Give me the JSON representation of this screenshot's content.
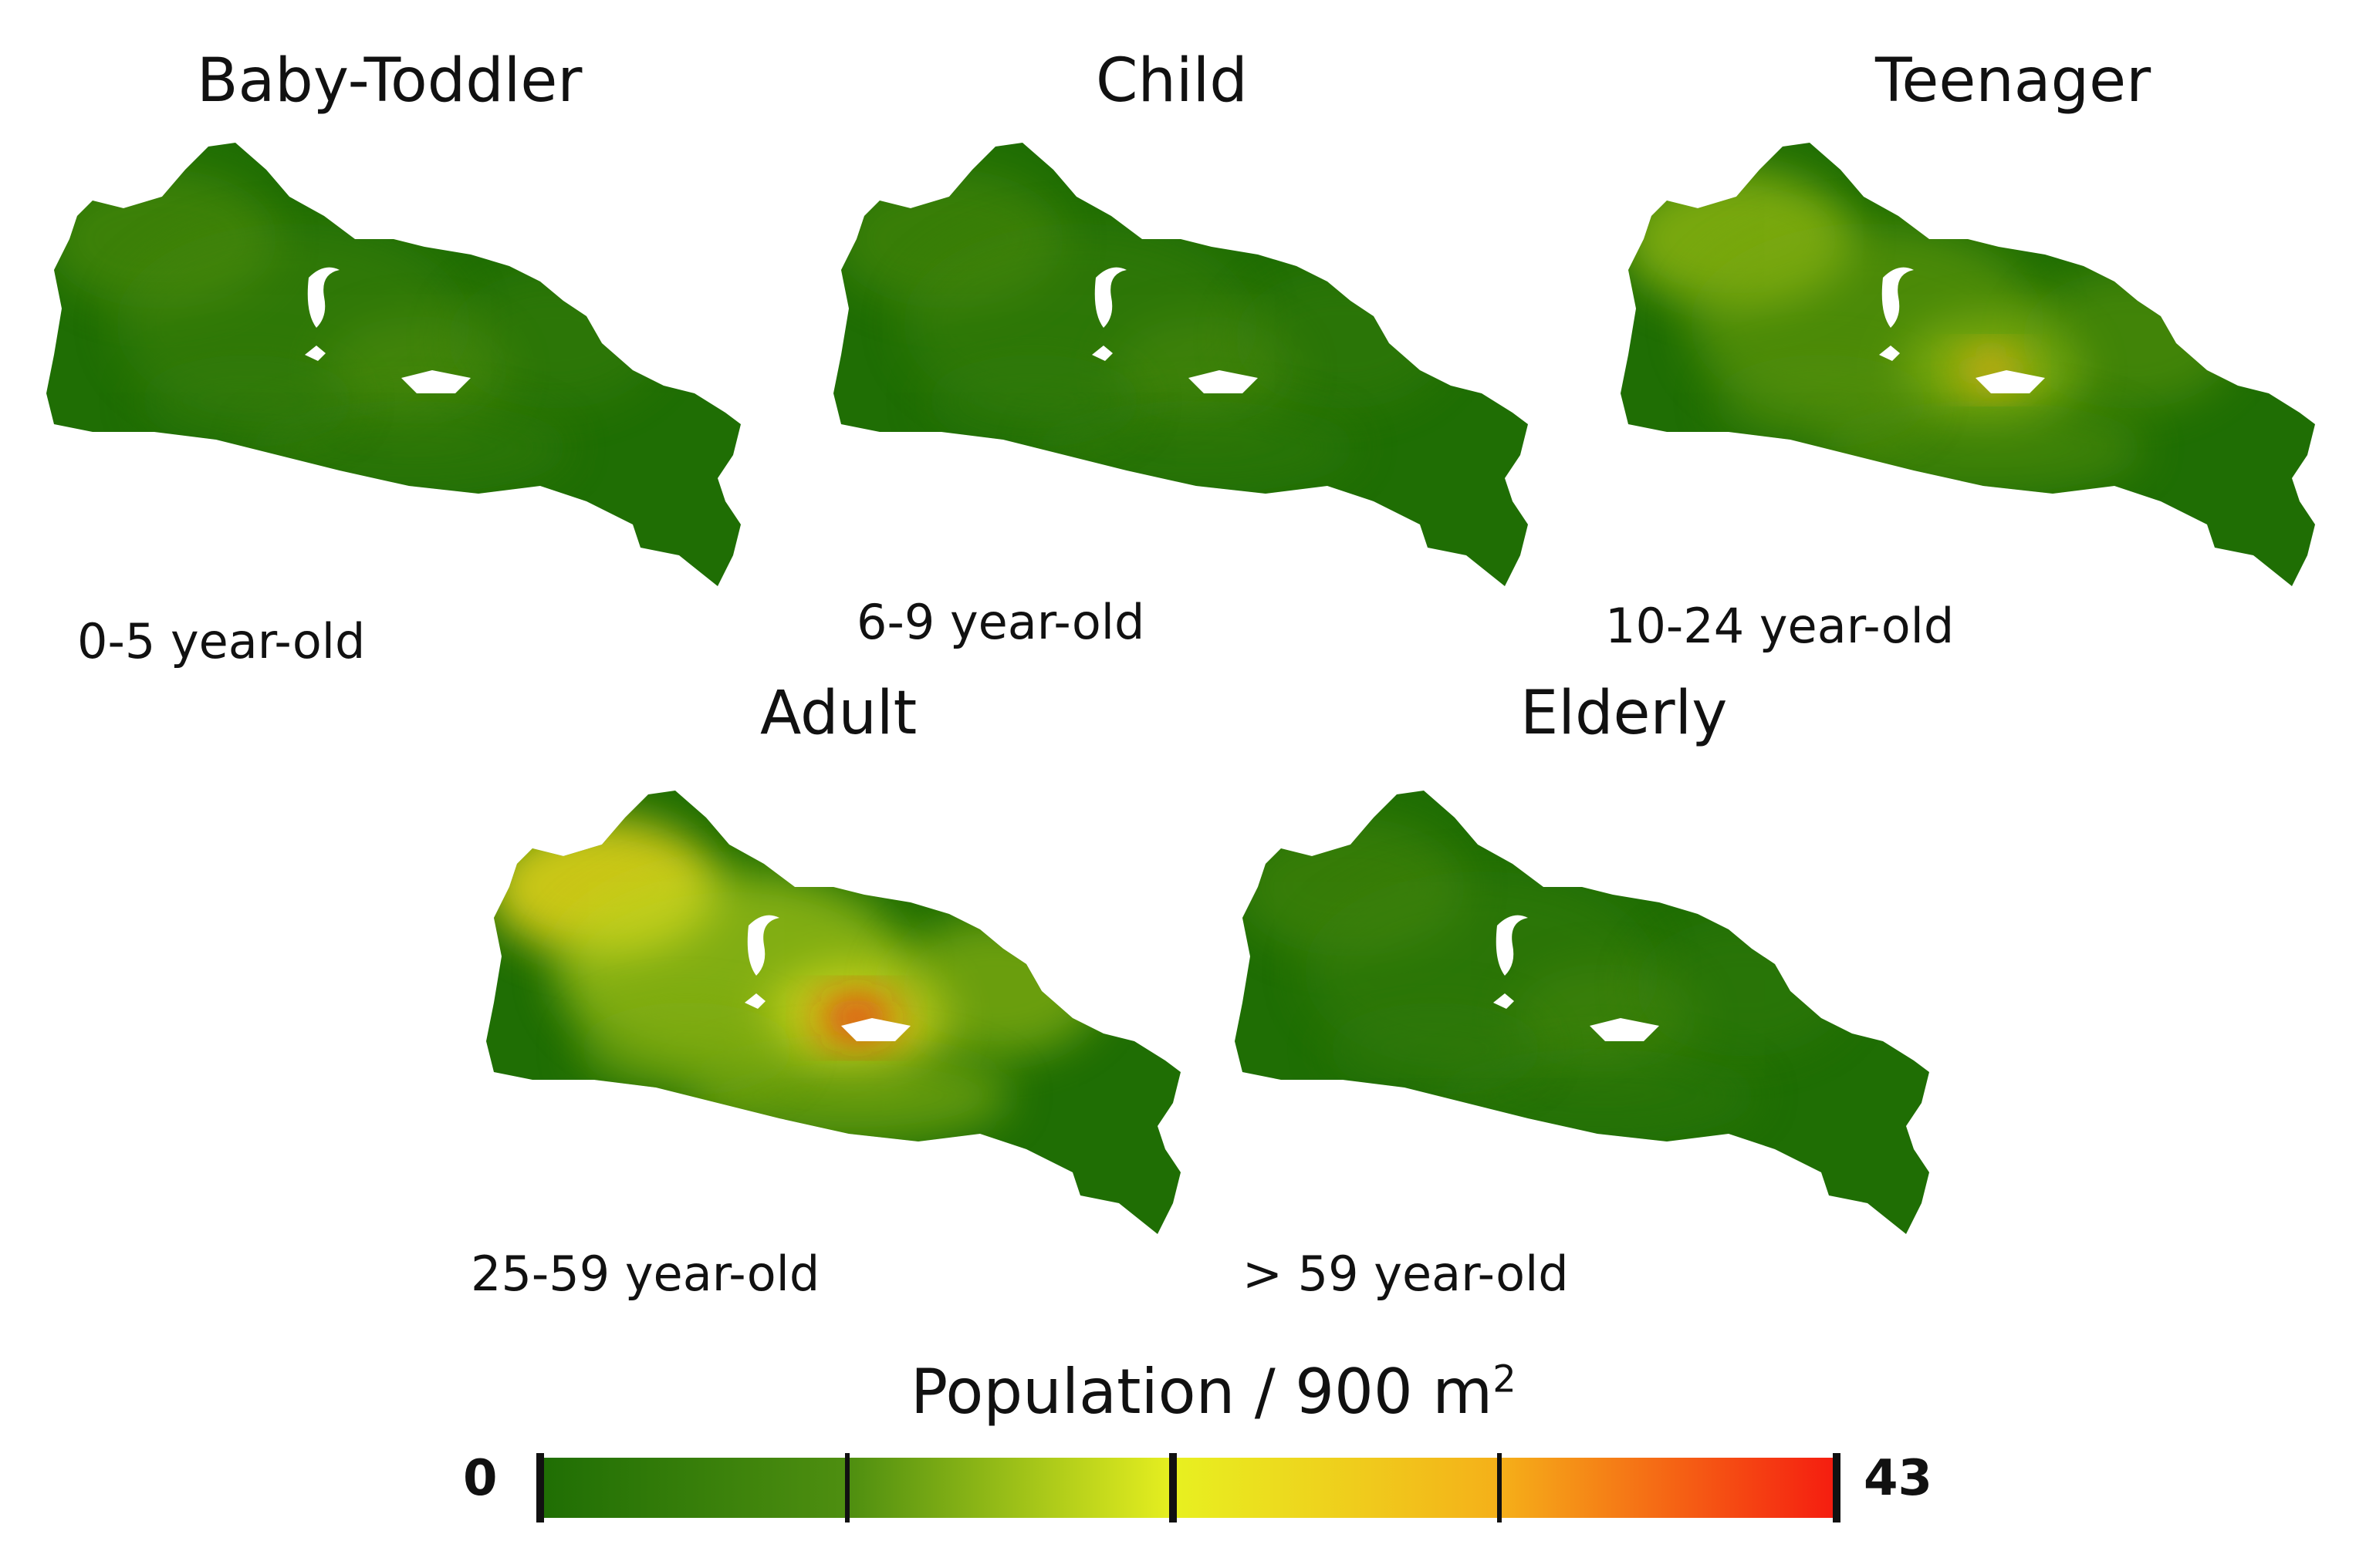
{
  "panels": [
    {
      "title": "Baby-Toddler",
      "subtitle": "0-5 year-old",
      "intensity": 0.2
    },
    {
      "title": "Child",
      "subtitle": "6-9 year-old",
      "intensity": 0.18
    },
    {
      "title": "Teenager",
      "subtitle": "10-24 year-old",
      "intensity": 0.45
    },
    {
      "title": "Adult",
      "subtitle": "25-59 year-old",
      "intensity": 0.8
    },
    {
      "title": "Elderly",
      "subtitle": "> 59 year-old",
      "intensity": 0.16
    }
  ],
  "legend": {
    "title": "Population  /  900 m",
    "title_superscript": "2",
    "min_label": "0",
    "max_label": "43",
    "colors": [
      "#1f6e04",
      "#4f8f10",
      "#e8f020",
      "#f5b019",
      "#f51c10"
    ]
  }
}
